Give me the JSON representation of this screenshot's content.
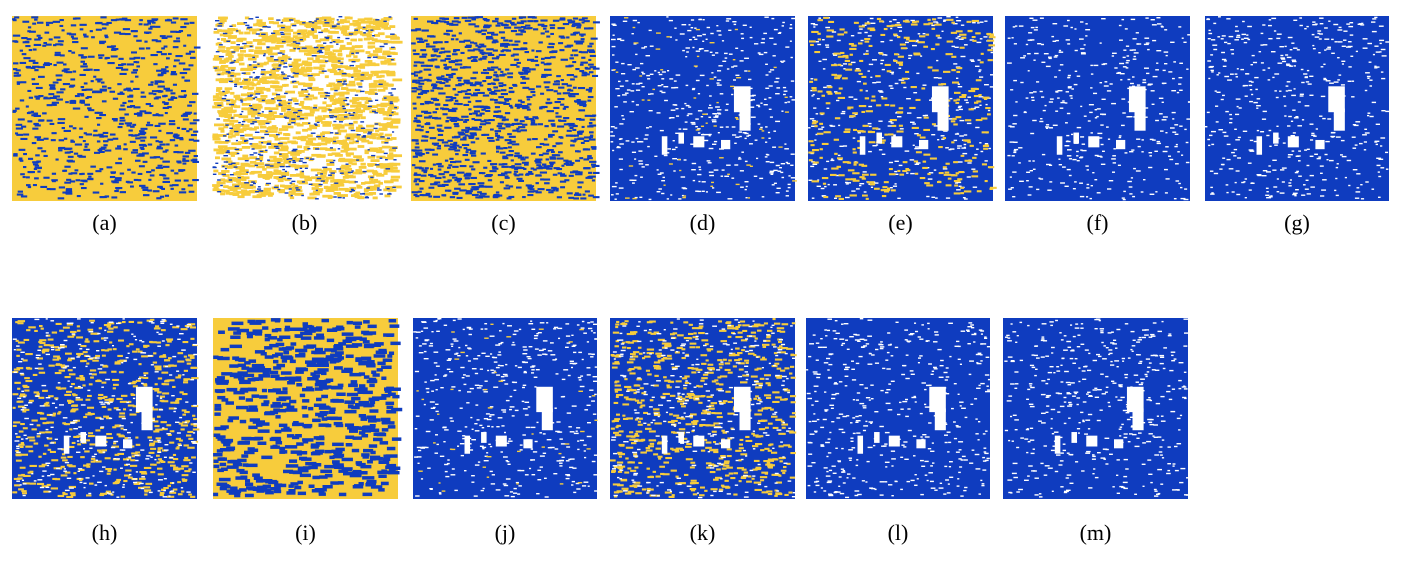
{
  "figure": {
    "panels": [
      {
        "label": "(a)"
      },
      {
        "label": "(b)"
      },
      {
        "label": "(c)"
      },
      {
        "label": "(d)"
      },
      {
        "label": "(e)"
      },
      {
        "label": "(f)"
      },
      {
        "label": "(g)"
      },
      {
        "label": "(h)"
      },
      {
        "label": "(i)"
      },
      {
        "label": "(j)"
      },
      {
        "label": "(k)"
      },
      {
        "label": "(l)"
      },
      {
        "label": "(m)"
      }
    ]
  }
}
